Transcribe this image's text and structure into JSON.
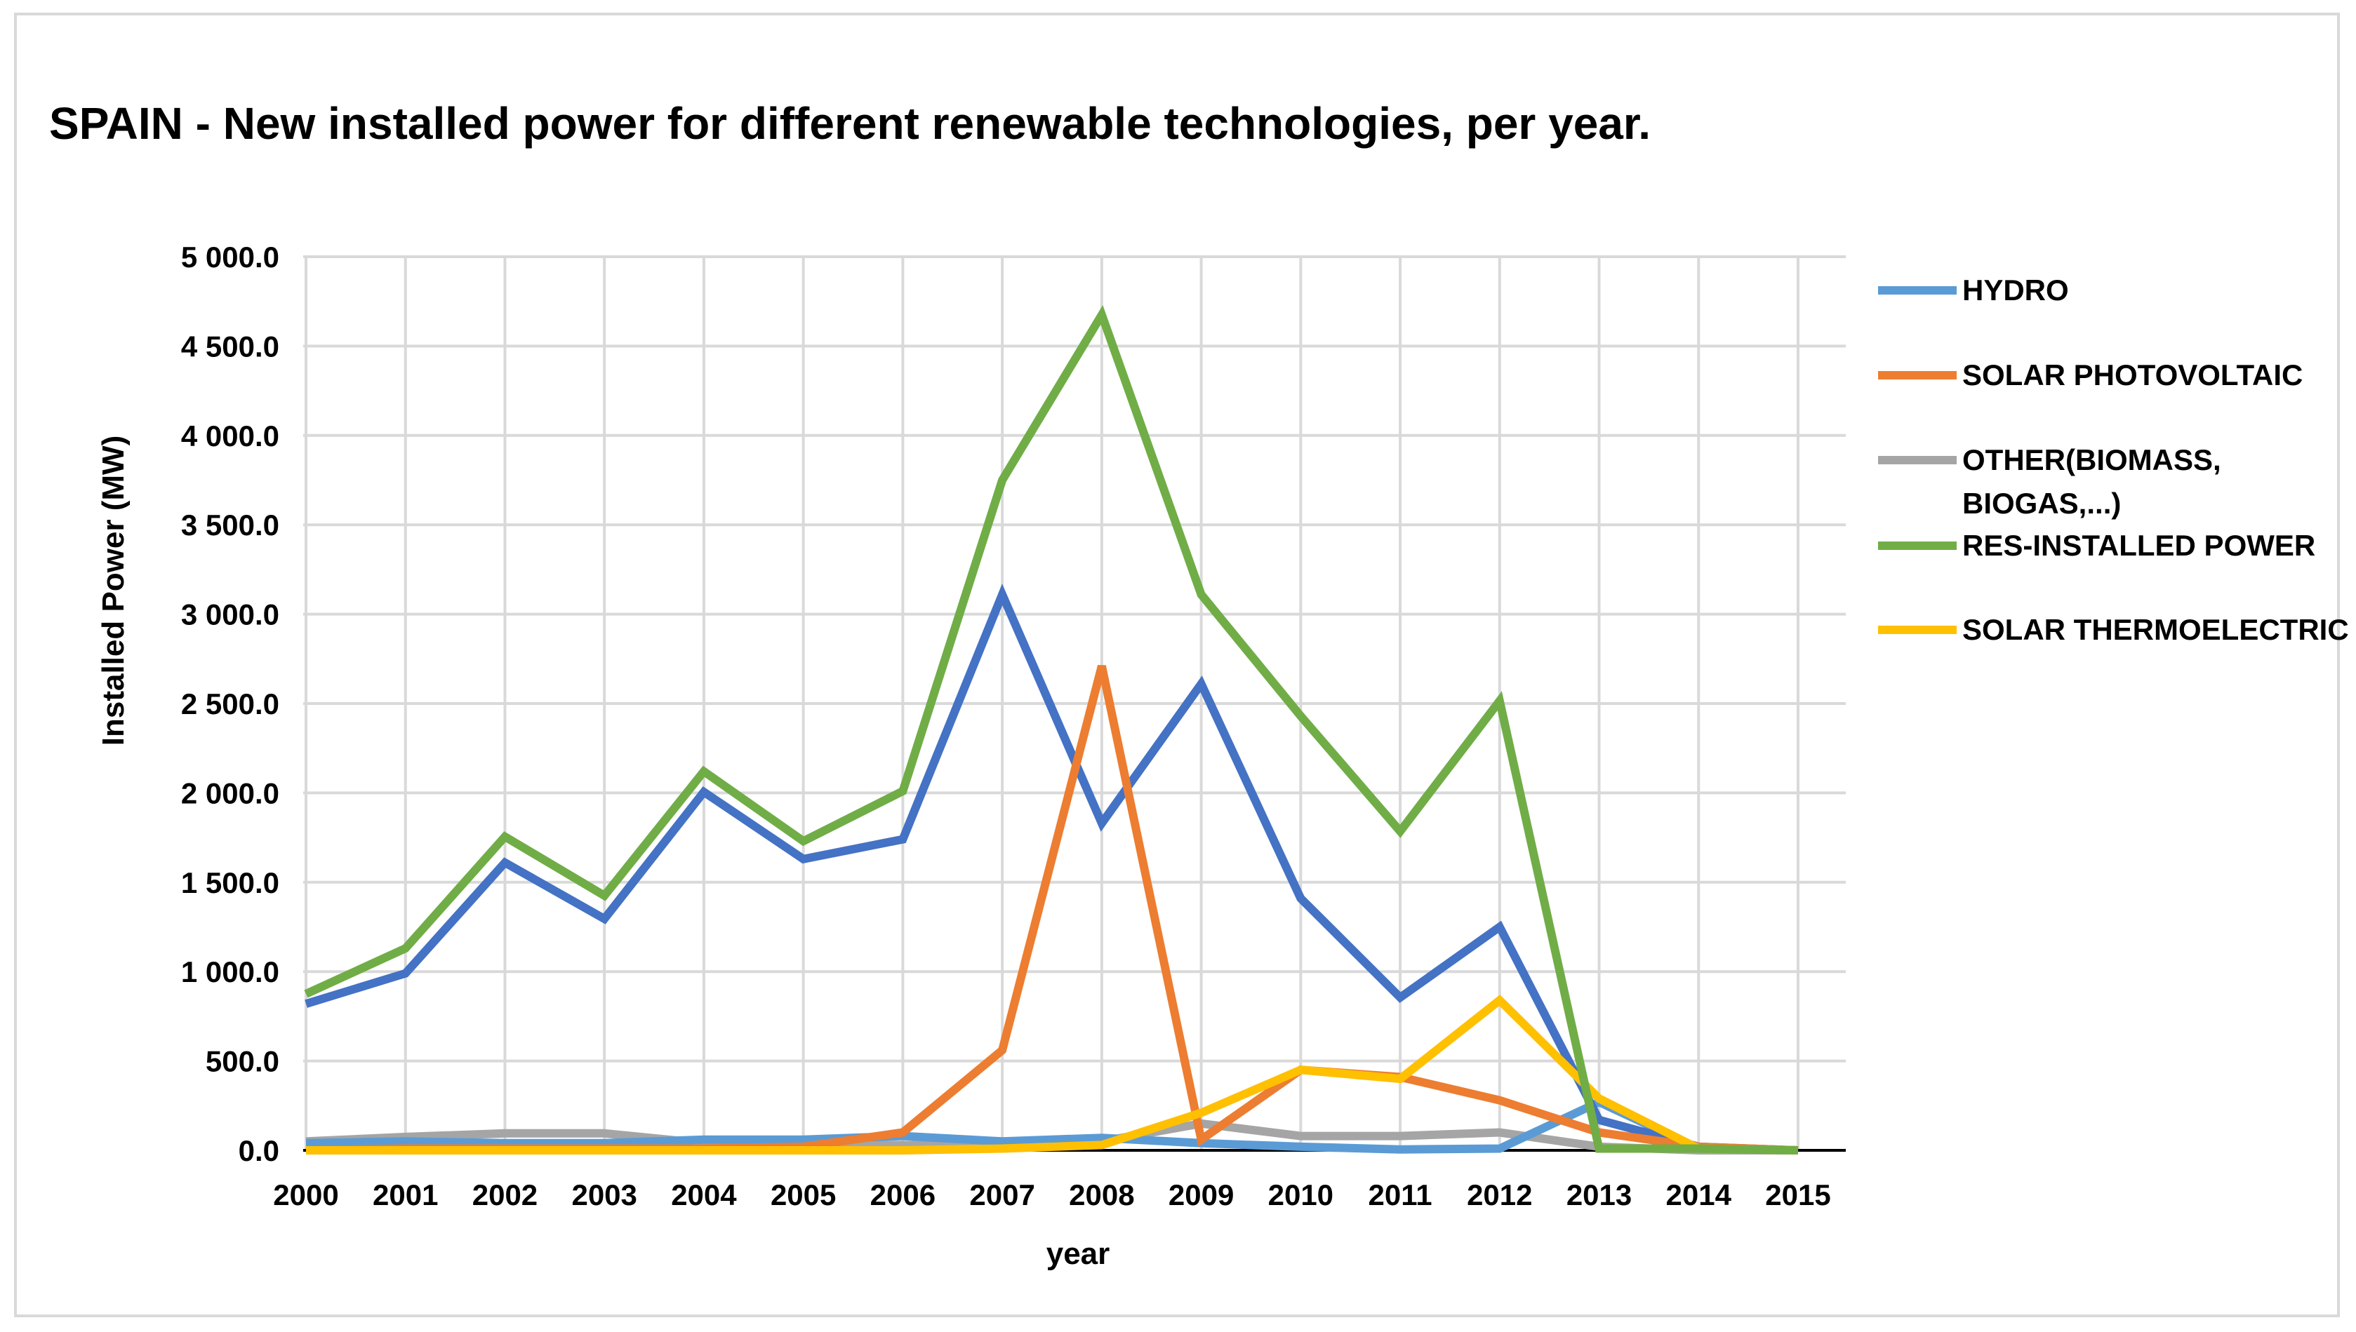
{
  "chart_data": {
    "type": "line",
    "title": "SPAIN - New installed power for different renewable technologies, per year.",
    "xlabel": "year",
    "ylabel": "Installed Power (MW)",
    "x": [
      "2000",
      "2001",
      "2002",
      "2003",
      "2004",
      "2005",
      "2006",
      "2007",
      "2008",
      "2009",
      "2010",
      "2011",
      "2012",
      "2013",
      "2014",
      "2015"
    ],
    "ylim": [
      0,
      5000
    ],
    "yticks": [
      "0.0",
      "500.0",
      "1 000.0",
      "1 500.0",
      "2 000.0",
      "2 500.0",
      "3 000.0",
      "3 500.0",
      "4 000.0",
      "4 500.0",
      "5 000.0"
    ],
    "grid": true,
    "legend_position": "right",
    "series": [
      {
        "name": "OTHER(BIOMASS, BIOGAS,...)",
        "color": "#a5a5a5",
        "legend_lines": [
          "OTHER(BIOMASS,",
          "BIOGAS,...)"
        ],
        "legend_slot": 2,
        "values": [
          50,
          75,
          95,
          95,
          40,
          30,
          30,
          25,
          50,
          150,
          80,
          80,
          100,
          20,
          0,
          0
        ]
      },
      {
        "name": "HYDRO",
        "color": "#5b9bd5",
        "legend_lines": [
          "HYDRO"
        ],
        "legend_slot": 0,
        "values": [
          40,
          50,
          40,
          40,
          60,
          60,
          80,
          50,
          70,
          40,
          20,
          5,
          10,
          270,
          10,
          0
        ]
      },
      {
        "name": "",
        "color": "#4472c4",
        "legend_lines": [],
        "legend_slot": -1,
        "values": [
          820,
          990,
          1610,
          1295,
          2005,
          1630,
          1740,
          3110,
          1830,
          2610,
          1410,
          855,
          1250,
          170,
          20,
          0
        ]
      },
      {
        "name": "SOLAR PHOTOVOLTAIC",
        "color": "#ed7d31",
        "legend_lines": [
          "SOLAR PHOTOVOLTAIC"
        ],
        "legend_slot": 1,
        "values": [
          0,
          10,
          10,
          10,
          10,
          20,
          100,
          560,
          2710,
          60,
          450,
          410,
          280,
          100,
          20,
          0
        ]
      },
      {
        "name": "SOLAR THERMOELECTRIC",
        "color": "#ffc000",
        "legend_lines": [
          "SOLAR THERMOELECTRIC"
        ],
        "legend_slot": 4,
        "values": [
          0,
          0,
          0,
          0,
          0,
          0,
          0,
          10,
          30,
          210,
          450,
          400,
          840,
          290,
          10,
          0
        ]
      },
      {
        "name": "RES-INSTALLED POWER",
        "color": "#70ad47",
        "legend_lines": [
          "RES-INSTALLED POWER"
        ],
        "legend_slot": 3,
        "values": [
          875,
          1130,
          1755,
          1425,
          2120,
          1730,
          2010,
          3750,
          4675,
          3110,
          2430,
          1785,
          2515,
          10,
          10,
          0
        ]
      }
    ]
  }
}
